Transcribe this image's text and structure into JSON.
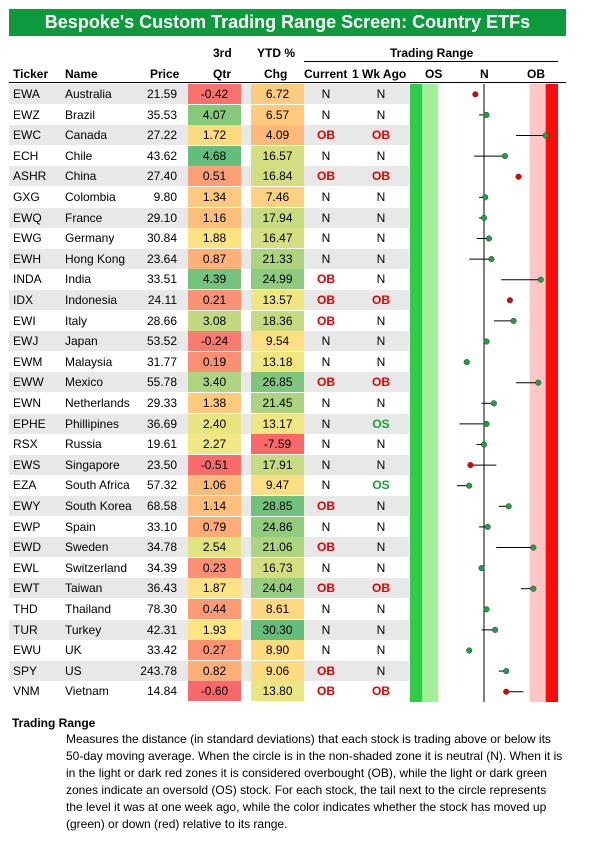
{
  "title": "Bespoke's Custom Trading Range Screen: Country ETFs",
  "headers": {
    "ticker": "Ticker",
    "name": "Name",
    "price": "Price",
    "q3_top": "3rd",
    "q3_bottom": "Qtr",
    "ytd_top": "YTD %",
    "ytd_bottom": "Chg",
    "trading_range": "Trading Range",
    "current": "Current",
    "wk_ago": "1 Wk Ago",
    "zone_os": "OS",
    "zone_n": "N",
    "zone_ob": "OB"
  },
  "colors": {
    "title_bg": "#0c9a3c",
    "ob": "#e00000",
    "os": "#13a335",
    "zone_dark_green": "#2ecc47",
    "zone_light_green": "#a3ee98",
    "zone_light_red": "#ffc6c6",
    "zone_dark_red": "#ff0a0a",
    "dot_up": "#20a040",
    "dot_down": "#e00000"
  },
  "chart_data": {
    "type": "table",
    "title": "Bespoke's Custom Trading Range Screen: Country ETFs",
    "zones": [
      "OS",
      "N",
      "OB"
    ],
    "range_axis": [
      -3,
      3
    ],
    "columns": [
      "Ticker",
      "Name",
      "Price",
      "3rd Qtr",
      "YTD % Chg",
      "Current",
      "1 Wk Ago"
    ],
    "rows": [
      {
        "ticker": "EWA",
        "name": "Australia",
        "price": "21.59",
        "q3": "-0.42",
        "ytd": "6.72",
        "current": "N",
        "wk_ago": "N",
        "now": -0.35,
        "wk": -0.35,
        "dir": "down"
      },
      {
        "ticker": "EWZ",
        "name": "Brazil",
        "price": "35.53",
        "q3": "4.07",
        "ytd": "6.57",
        "current": "N",
        "wk_ago": "N",
        "now": 0.1,
        "wk": -0.2,
        "dir": "up"
      },
      {
        "ticker": "EWC",
        "name": "Canada",
        "price": "27.22",
        "q3": "1.72",
        "ytd": "4.09",
        "current": "OB",
        "wk_ago": "OB",
        "now": 2.5,
        "wk": 1.3,
        "dir": "up"
      },
      {
        "ticker": "ECH",
        "name": "Chile",
        "price": "43.62",
        "q3": "4.68",
        "ytd": "16.57",
        "current": "N",
        "wk_ago": "N",
        "now": 0.85,
        "wk": -0.4,
        "dir": "up"
      },
      {
        "ticker": "ASHR",
        "name": "China",
        "price": "27.40",
        "q3": "0.51",
        "ytd": "16.84",
        "current": "OB",
        "wk_ago": "OB",
        "now": 1.4,
        "wk": 1.4,
        "dir": "down"
      },
      {
        "ticker": "GXG",
        "name": "Colombia",
        "price": "9.80",
        "q3": "1.34",
        "ytd": "7.46",
        "current": "N",
        "wk_ago": "N",
        "now": 0.05,
        "wk": -0.2,
        "dir": "up"
      },
      {
        "ticker": "EWQ",
        "name": "France",
        "price": "29.10",
        "q3": "1.16",
        "ytd": "17.94",
        "current": "N",
        "wk_ago": "N",
        "now": 0.0,
        "wk": -0.2,
        "dir": "up"
      },
      {
        "ticker": "EWG",
        "name": "Germany",
        "price": "30.84",
        "q3": "1.88",
        "ytd": "16.47",
        "current": "N",
        "wk_ago": "N",
        "now": 0.2,
        "wk": -0.3,
        "dir": "up"
      },
      {
        "ticker": "EWH",
        "name": "Hong Kong",
        "price": "23.64",
        "q3": "0.87",
        "ytd": "21.33",
        "current": "N",
        "wk_ago": "N",
        "now": 0.3,
        "wk": -0.6,
        "dir": "up"
      },
      {
        "ticker": "INDA",
        "name": "India",
        "price": "33.51",
        "q3": "4.39",
        "ytd": "24.99",
        "current": "OB",
        "wk_ago": "N",
        "now": 2.3,
        "wk": 0.7,
        "dir": "up"
      },
      {
        "ticker": "IDX",
        "name": "Indonesia",
        "price": "24.11",
        "q3": "0.21",
        "ytd": "13.57",
        "current": "OB",
        "wk_ago": "OB",
        "now": 1.05,
        "wk": 1.05,
        "dir": "down"
      },
      {
        "ticker": "EWI",
        "name": "Italy",
        "price": "28.66",
        "q3": "3.08",
        "ytd": "18.36",
        "current": "OB",
        "wk_ago": "N",
        "now": 1.2,
        "wk": 0.4,
        "dir": "up"
      },
      {
        "ticker": "EWJ",
        "name": "Japan",
        "price": "53.52",
        "q3": "-0.24",
        "ytd": "9.54",
        "current": "N",
        "wk_ago": "N",
        "now": 0.1,
        "wk": 0.0,
        "dir": "up"
      },
      {
        "ticker": "EWM",
        "name": "Malaysia",
        "price": "31.77",
        "q3": "0.19",
        "ytd": "13.18",
        "current": "N",
        "wk_ago": "N",
        "now": -0.7,
        "wk": -0.7,
        "dir": "up"
      },
      {
        "ticker": "EWW",
        "name": "Mexico",
        "price": "55.78",
        "q3": "3.40",
        "ytd": "26.85",
        "current": "OB",
        "wk_ago": "OB",
        "now": 2.2,
        "wk": 1.3,
        "dir": "up"
      },
      {
        "ticker": "EWN",
        "name": "Netherlands",
        "price": "29.33",
        "q3": "1.38",
        "ytd": "21.45",
        "current": "N",
        "wk_ago": "N",
        "now": 0.4,
        "wk": -0.1,
        "dir": "up"
      },
      {
        "ticker": "EPHE",
        "name": "Phillipines",
        "price": "36.69",
        "q3": "2.40",
        "ytd": "13.17",
        "current": "N",
        "wk_ago": "OS",
        "now": 0.1,
        "wk": -1.0,
        "dir": "up"
      },
      {
        "ticker": "RSX",
        "name": "Russia",
        "price": "19.61",
        "q3": "2.27",
        "ytd": "-7.59",
        "current": "N",
        "wk_ago": "N",
        "now": 0.0,
        "wk": -0.3,
        "dir": "up"
      },
      {
        "ticker": "EWS",
        "name": "Singapore",
        "price": "23.50",
        "q3": "-0.51",
        "ytd": "17.91",
        "current": "N",
        "wk_ago": "N",
        "now": -0.55,
        "wk": 0.5,
        "dir": "down"
      },
      {
        "ticker": "EZA",
        "name": "South Africa",
        "price": "57.32",
        "q3": "1.06",
        "ytd": "9.47",
        "current": "N",
        "wk_ago": "OS",
        "now": -0.6,
        "wk": -1.1,
        "dir": "up"
      },
      {
        "ticker": "EWY",
        "name": "South Korea",
        "price": "68.58",
        "q3": "1.14",
        "ytd": "28.85",
        "current": "OB",
        "wk_ago": "N",
        "now": 1.0,
        "wk": 0.6,
        "dir": "up"
      },
      {
        "ticker": "EWP",
        "name": "Spain",
        "price": "33.10",
        "q3": "0.79",
        "ytd": "24.86",
        "current": "N",
        "wk_ago": "N",
        "now": 0.15,
        "wk": -0.2,
        "dir": "up"
      },
      {
        "ticker": "EWD",
        "name": "Sweden",
        "price": "34.78",
        "q3": "2.54",
        "ytd": "21.06",
        "current": "OB",
        "wk_ago": "N",
        "now": 2.0,
        "wk": 0.5,
        "dir": "up"
      },
      {
        "ticker": "EWL",
        "name": "Switzerland",
        "price": "34.39",
        "q3": "0.23",
        "ytd": "16.73",
        "current": "N",
        "wk_ago": "N",
        "now": -0.1,
        "wk": -0.1,
        "dir": "up"
      },
      {
        "ticker": "EWT",
        "name": "Taiwan",
        "price": "36.43",
        "q3": "1.87",
        "ytd": "24.04",
        "current": "OB",
        "wk_ago": "OB",
        "now": 2.0,
        "wk": 1.5,
        "dir": "up"
      },
      {
        "ticker": "THD",
        "name": "Thailand",
        "price": "78.30",
        "q3": "0.44",
        "ytd": "8.61",
        "current": "N",
        "wk_ago": "N",
        "now": 0.1,
        "wk": 0.0,
        "dir": "up"
      },
      {
        "ticker": "TUR",
        "name": "Turkey",
        "price": "42.31",
        "q3": "1.93",
        "ytd": "30.30",
        "current": "N",
        "wk_ago": "N",
        "now": 0.45,
        "wk": -0.1,
        "dir": "up"
      },
      {
        "ticker": "EWU",
        "name": "UK",
        "price": "33.42",
        "q3": "0.27",
        "ytd": "8.90",
        "current": "N",
        "wk_ago": "N",
        "now": -0.6,
        "wk": -0.6,
        "dir": "up"
      },
      {
        "ticker": "SPY",
        "name": "US",
        "price": "243.78",
        "q3": "0.82",
        "ytd": "9.06",
        "current": "OB",
        "wk_ago": "N",
        "now": 0.9,
        "wk": 0.6,
        "dir": "up"
      },
      {
        "ticker": "VNM",
        "name": "Vietnam",
        "price": "14.84",
        "q3": "-0.60",
        "ytd": "13.80",
        "current": "OB",
        "wk_ago": "OB",
        "now": 0.9,
        "wk": 1.6,
        "dir": "down"
      }
    ]
  },
  "footnote": {
    "title": "Trading Range",
    "body": "Measures the distance (in standard deviations) that each stock is trading above or below its 50-day moving average.  When the circle is in the non-shaded zone it is neutral (N).  When it is in the light or dark red zones it is considered overbought (OB), while the light or dark green zones indicate an oversold (OS) stock.  For each stock, the tail next to the circle represents the level it was at one week ago, while the color indicates whether the stock has moved up (green) or down (red) relative to its range."
  }
}
